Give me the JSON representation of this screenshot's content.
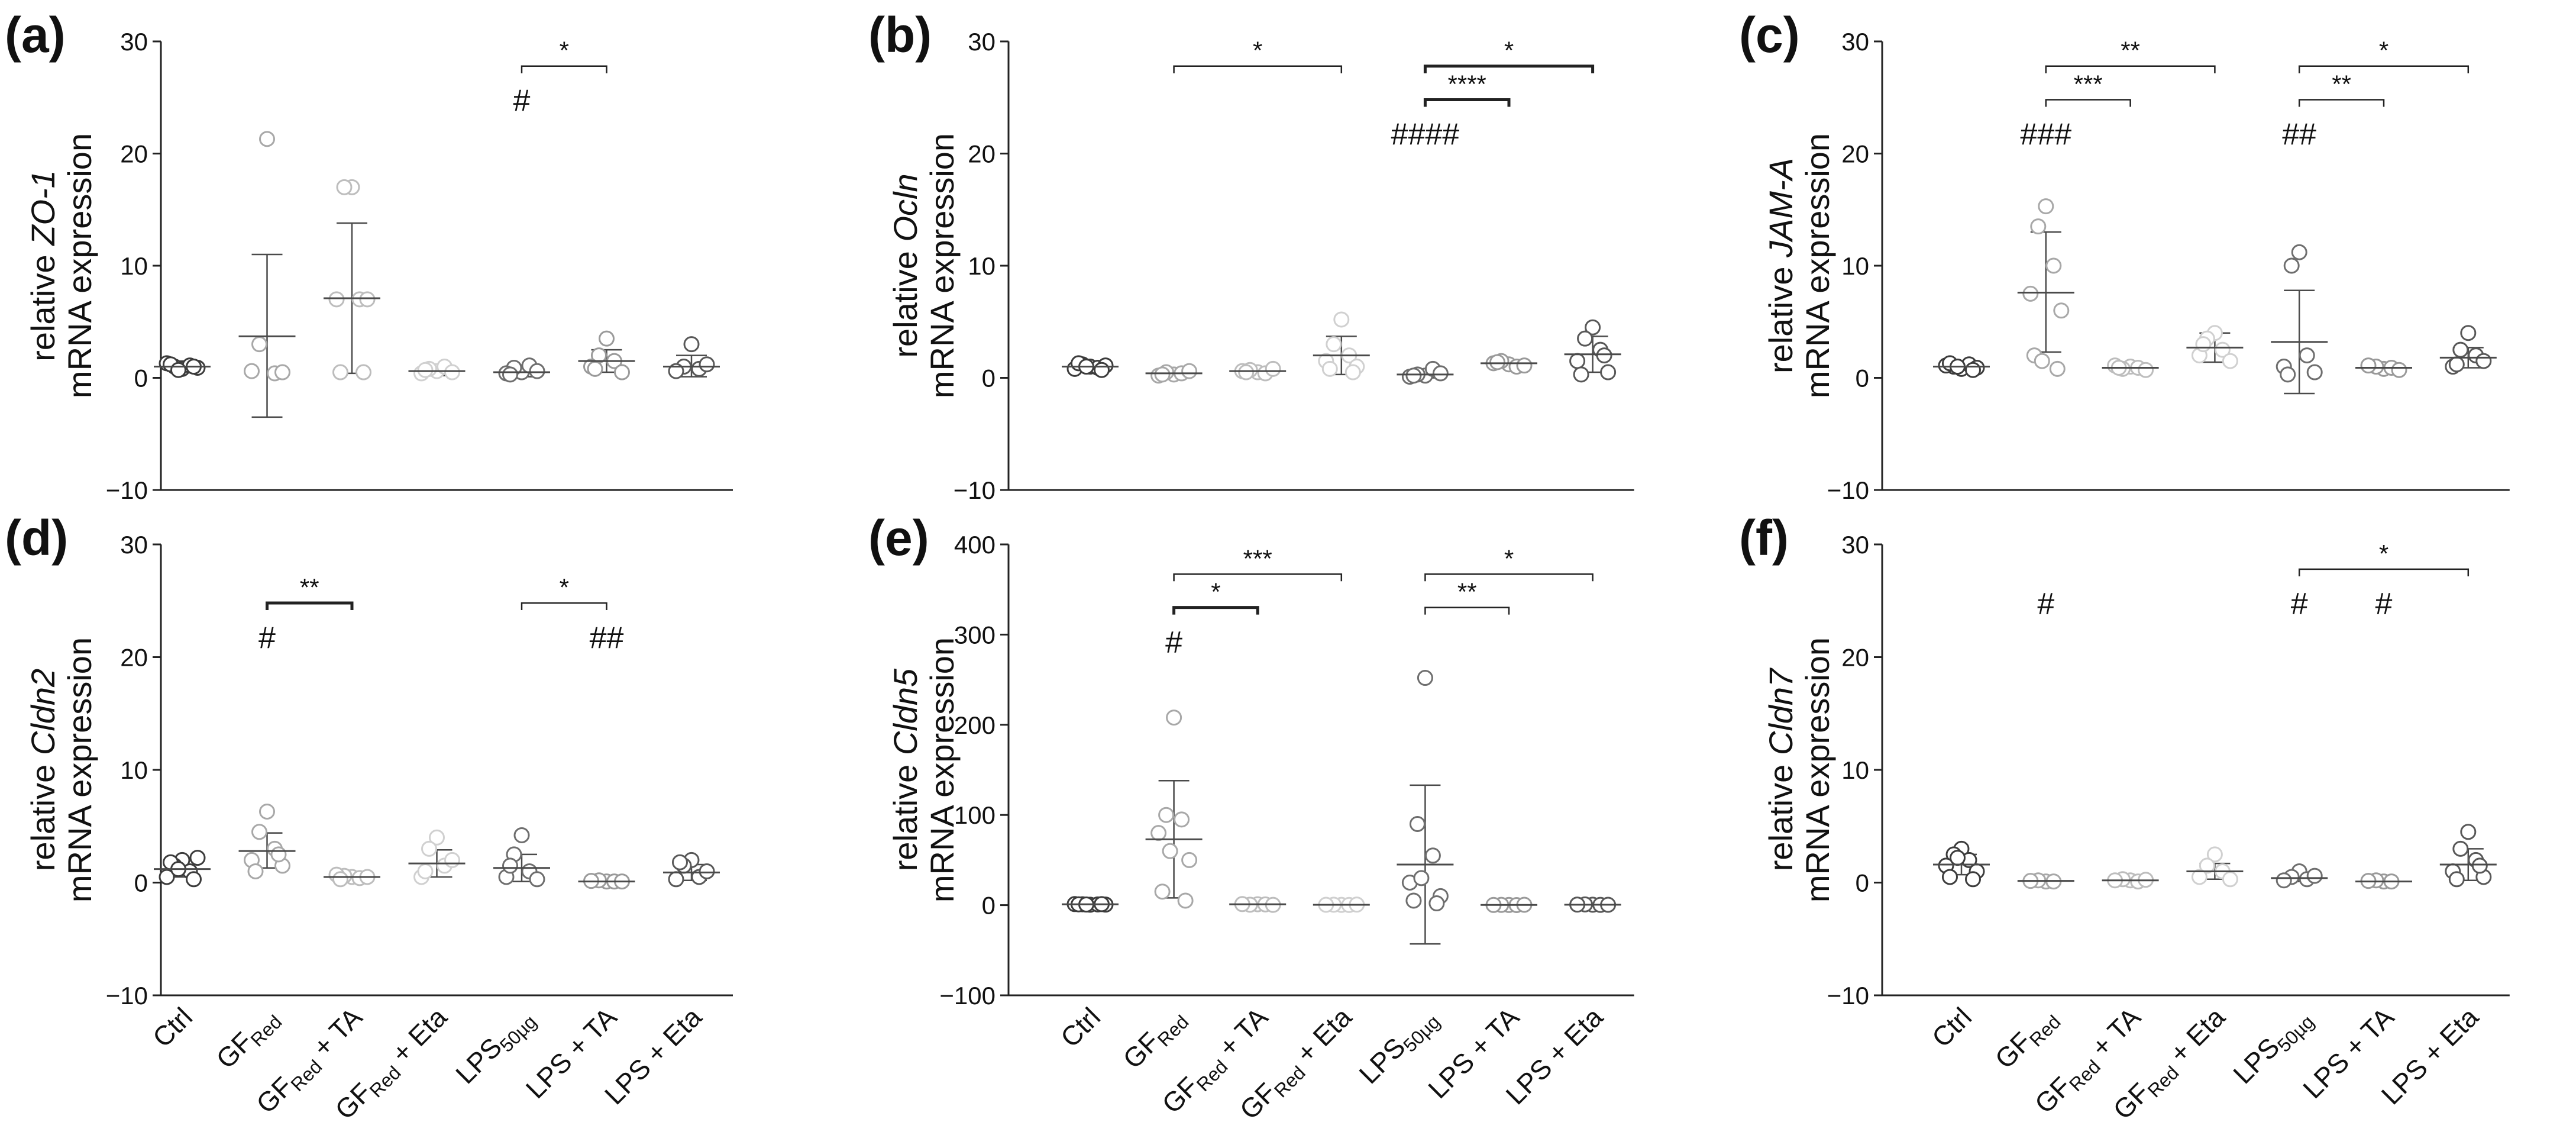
{
  "chart_data": [
    {
      "type": "scatter",
      "panel": "(a)",
      "ylabel": {
        "prefix": "relative ",
        "gene": "ZO-1",
        "line2": "mRNA expression"
      },
      "ylim": [
        -10,
        30
      ],
      "yticks": [
        -10,
        0,
        10,
        20,
        30
      ],
      "categories": [
        "Ctrl",
        "GF_Red",
        "GF_Red + TA",
        "GF_Red + Eta",
        "LPS_50µg",
        "LPS + TA",
        "LPS + Eta"
      ],
      "points": [
        [
          0.8,
          1.0,
          1.1,
          1.3,
          0.9,
          1.2,
          1.0,
          0.7
        ],
        [
          21.3,
          3.0,
          0.4,
          0.6,
          0.5
        ],
        [
          17.0,
          17.0,
          7.0,
          7.0,
          7.0,
          0.5,
          0.5
        ],
        [
          0.6,
          0.8,
          1.0,
          0.4,
          0.5,
          0.7
        ],
        [
          0.5,
          0.9,
          1.1,
          0.4,
          0.6,
          0.3
        ],
        [
          3.5,
          2.0,
          1.5,
          1.0,
          0.5,
          0.8
        ],
        [
          3.0,
          1.0,
          0.8,
          0.6,
          1.2
        ]
      ],
      "mean": [
        1.0,
        3.7,
        7.1,
        0.6,
        0.5,
        1.5,
        1.0
      ],
      "sd_upper": [
        1.5,
        11.0,
        13.8,
        1.0,
        1.0,
        2.5,
        2.0
      ],
      "sd_lower": [
        0.6,
        -3.5,
        0.4,
        0.2,
        0.1,
        0.5,
        0.1
      ],
      "brackets": [
        {
          "from": 4,
          "to": 5,
          "y": 27.8,
          "label": "*",
          "bold": false
        }
      ],
      "hashes": [
        {
          "cat": 4,
          "y": 23.8,
          "label": "#"
        }
      ]
    },
    {
      "type": "scatter",
      "panel": "(b)",
      "ylabel": {
        "prefix": "relative ",
        "gene": "Ocln",
        "line2": "mRNA expression"
      },
      "ylim": [
        -10,
        30
      ],
      "yticks": [
        -10,
        0,
        10,
        20,
        30
      ],
      "categories": [
        "Ctrl",
        "GF_Red",
        "GF_Red + TA",
        "GF_Red + Eta",
        "LPS_50µg",
        "LPS + TA",
        "LPS + Eta"
      ],
      "points": [
        [
          1.0,
          1.2,
          0.9,
          0.8,
          1.1,
          1.3,
          0.7,
          1.0
        ],
        [
          0.3,
          0.5,
          0.4,
          0.2,
          0.6,
          0.3
        ],
        [
          0.5,
          0.7,
          0.4,
          0.6,
          0.8,
          0.5
        ],
        [
          5.2,
          3.0,
          2.0,
          1.5,
          1.0,
          0.8,
          0.5
        ],
        [
          0.2,
          0.3,
          0.8,
          0.1,
          0.4,
          0.2
        ],
        [
          1.2,
          1.5,
          1.0,
          1.3,
          1.1,
          1.4
        ],
        [
          4.5,
          3.5,
          2.5,
          1.5,
          0.5,
          0.3,
          2.0
        ]
      ],
      "mean": [
        1.0,
        0.4,
        0.6,
        2.0,
        0.3,
        1.3,
        2.1
      ],
      "sd_upper": [
        1.3,
        0.6,
        0.8,
        3.7,
        0.6,
        1.6,
        3.7
      ],
      "sd_lower": [
        0.7,
        0.2,
        0.4,
        0.3,
        0.0,
        1.0,
        0.5
      ],
      "brackets": [
        {
          "from": 1,
          "to": 3,
          "y": 27.8,
          "label": "*",
          "bold": false
        },
        {
          "from": 4,
          "to": 6,
          "y": 27.8,
          "label": "*",
          "bold": true
        },
        {
          "from": 4,
          "to": 5,
          "y": 24.8,
          "label": "****",
          "bold": true
        }
      ],
      "hashes": [
        {
          "cat": 4,
          "y": 20.8,
          "label": "####"
        }
      ]
    },
    {
      "type": "scatter",
      "panel": "(c)",
      "ylabel": {
        "prefix": "relative ",
        "gene": "JAM-A",
        "line2": "mRNA expression"
      },
      "ylim": [
        -10,
        30
      ],
      "yticks": [
        -10,
        0,
        10,
        20,
        30
      ],
      "categories": [
        "Ctrl",
        "GF_Red",
        "GF_Red + TA",
        "GF_Red + Eta",
        "LPS_50µg",
        "LPS + TA",
        "LPS + Eta"
      ],
      "points": [
        [
          0.8,
          1.0,
          1.2,
          1.1,
          0.9,
          1.3,
          0.7,
          1.0
        ],
        [
          15.3,
          13.5,
          10.0,
          7.5,
          6.0,
          2.0,
          0.8,
          1.5
        ],
        [
          1.0,
          0.8,
          0.9,
          1.1,
          0.7,
          0.9
        ],
        [
          4.0,
          3.5,
          2.5,
          2.0,
          1.5,
          3.0
        ],
        [
          11.2,
          10.0,
          2.0,
          1.0,
          0.5,
          0.3
        ],
        [
          0.8,
          1.0,
          0.9,
          1.1,
          0.7
        ],
        [
          4.0,
          2.5,
          2.0,
          1.0,
          1.5,
          1.2
        ]
      ],
      "mean": [
        1.0,
        7.6,
        0.9,
        2.7,
        3.2,
        0.9,
        1.8
      ],
      "sd_upper": [
        1.2,
        13.0,
        1.1,
        4.0,
        7.8,
        1.1,
        2.7
      ],
      "sd_lower": [
        0.8,
        2.3,
        0.7,
        1.4,
        -1.4,
        0.7,
        0.9
      ],
      "brackets": [
        {
          "from": 1,
          "to": 3,
          "y": 27.8,
          "label": "**",
          "bold": false
        },
        {
          "from": 1,
          "to": 2,
          "y": 24.8,
          "label": "***",
          "bold": false
        },
        {
          "from": 4,
          "to": 6,
          "y": 27.8,
          "label": "*",
          "bold": false
        },
        {
          "from": 4,
          "to": 5,
          "y": 24.8,
          "label": "**",
          "bold": false
        }
      ],
      "hashes": [
        {
          "cat": 1,
          "y": 20.8,
          "label": "###"
        },
        {
          "cat": 4,
          "y": 20.8,
          "label": "##"
        }
      ]
    },
    {
      "type": "scatter",
      "panel": "(d)",
      "ylabel": {
        "prefix": "relative ",
        "gene": "Cldn2",
        "line2": "mRNA expression"
      },
      "ylim": [
        -10,
        30
      ],
      "yticks": [
        -10,
        0,
        10,
        20,
        30
      ],
      "categories": [
        "Ctrl",
        "GF_Red",
        "GF_Red + TA",
        "GF_Red + Eta",
        "LPS_50µg",
        "LPS + TA",
        "LPS + Eta"
      ],
      "points": [
        [
          2.0,
          1.5,
          1.0,
          0.5,
          2.2,
          1.8,
          0.3,
          1.2
        ],
        [
          6.3,
          4.5,
          3.0,
          2.0,
          1.5,
          1.0,
          2.5
        ],
        [
          0.5,
          0.6,
          0.4,
          0.7,
          0.5,
          0.3
        ],
        [
          4.0,
          3.0,
          1.5,
          0.5,
          2.0,
          1.0
        ],
        [
          4.2,
          2.5,
          1.0,
          0.5,
          0.3,
          1.5
        ],
        [
          0.1,
          0.2,
          0.1,
          0.15,
          0.1
        ],
        [
          2.0,
          1.5,
          0.5,
          0.3,
          1.0,
          1.8
        ]
      ],
      "mean": [
        1.2,
        2.8,
        0.5,
        1.7,
        1.3,
        0.1,
        0.9
      ],
      "sd_upper": [
        2.0,
        4.4,
        0.7,
        2.9,
        2.5,
        0.2,
        1.6
      ],
      "sd_lower": [
        0.5,
        1.3,
        0.3,
        0.5,
        0.1,
        0.0,
        0.2
      ],
      "brackets": [
        {
          "from": 1,
          "to": 2,
          "y": 24.8,
          "label": "**",
          "bold": true
        },
        {
          "from": 4,
          "to": 5,
          "y": 24.8,
          "label": "*",
          "bold": false
        }
      ],
      "hashes": [
        {
          "cat": 1,
          "y": 20.8,
          "label": "#"
        },
        {
          "cat": 5,
          "y": 20.8,
          "label": "##"
        }
      ]
    },
    {
      "type": "scatter",
      "panel": "(e)",
      "ylabel": {
        "prefix": "relative ",
        "gene": "Cldn5",
        "line2": "mRNA expression"
      },
      "ylim": [
        -100,
        400
      ],
      "yticks": [
        -100,
        0,
        100,
        200,
        300,
        400
      ],
      "categories": [
        "Ctrl",
        "GF_Red",
        "GF_Red + TA",
        "GF_Red + Eta",
        "LPS_50µg",
        "LPS + TA",
        "LPS + Eta"
      ],
      "points": [
        [
          0.5,
          1.0,
          0.8,
          1.2,
          0.6,
          0.9,
          1.1,
          0.7
        ],
        [
          208.0,
          100.0,
          95.0,
          80.0,
          50.0,
          15.0,
          5.0,
          60.0
        ],
        [
          1.0,
          0.5,
          0.8,
          1.2,
          0.3
        ],
        [
          0.3,
          0.5,
          0.2,
          0.4,
          0.6
        ],
        [
          252.0,
          90.0,
          55.0,
          25.0,
          10.0,
          5.0,
          2.0,
          30.0
        ],
        [
          0.2,
          0.3,
          0.1,
          0.2,
          0.4
        ],
        [
          0.5,
          0.8,
          0.3,
          0.6,
          0.4
        ]
      ],
      "mean": [
        1.0,
        73.0,
        1.0,
        0.4,
        45.0,
        0.2,
        0.5
      ],
      "sd_upper": [
        1.5,
        138.0,
        1.5,
        0.6,
        133.0,
        0.4,
        0.8
      ],
      "sd_lower": [
        0.5,
        8.0,
        0.5,
        0.2,
        -43.0,
        0.0,
        0.2
      ],
      "brackets": [
        {
          "from": 1,
          "to": 3,
          "y": 367,
          "label": "***",
          "bold": false
        },
        {
          "from": 1,
          "to": 2,
          "y": 330,
          "label": "*",
          "bold": true
        },
        {
          "from": 4,
          "to": 6,
          "y": 367,
          "label": "*",
          "bold": false
        },
        {
          "from": 4,
          "to": 5,
          "y": 330,
          "label": "**",
          "bold": false
        }
      ],
      "hashes": [
        {
          "cat": 1,
          "y": 280,
          "label": "#"
        }
      ]
    },
    {
      "type": "scatter",
      "panel": "(f)",
      "ylabel": {
        "prefix": "relative ",
        "gene": "Cldn7",
        "line2": "mRNA expression"
      },
      "ylim": [
        -10,
        30
      ],
      "yticks": [
        -10,
        0,
        10,
        20,
        30
      ],
      "categories": [
        "Ctrl",
        "GF_Red",
        "GF_Red + TA",
        "GF_Red + Eta",
        "LPS_50µg",
        "LPS + TA",
        "LPS + Eta"
      ],
      "points": [
        [
          3.0,
          2.5,
          2.0,
          1.5,
          1.0,
          0.5,
          0.3,
          2.2
        ],
        [
          0.1,
          0.2,
          0.1,
          0.15
        ],
        [
          0.2,
          0.3,
          0.1,
          0.2,
          0.25
        ],
        [
          2.5,
          1.5,
          1.0,
          0.5,
          0.3
        ],
        [
          1.0,
          0.5,
          0.3,
          0.2,
          0.6
        ],
        [
          0.1,
          0.2,
          0.1,
          0.15
        ],
        [
          4.5,
          3.0,
          2.0,
          1.0,
          0.5,
          0.3,
          1.5
        ]
      ],
      "mean": [
        1.6,
        0.15,
        0.2,
        1.0,
        0.4,
        0.1,
        1.6
      ],
      "sd_upper": [
        2.5,
        0.2,
        0.3,
        1.7,
        0.7,
        0.2,
        3.0
      ],
      "sd_lower": [
        0.7,
        0.1,
        0.1,
        0.3,
        0.1,
        0.0,
        0.2
      ],
      "brackets": [
        {
          "from": 4,
          "to": 6,
          "y": 27.8,
          "label": "*",
          "bold": false
        }
      ],
      "hashes": [
        {
          "cat": 1,
          "y": 23.8,
          "label": "#"
        },
        {
          "cat": 4,
          "y": 23.8,
          "label": "#"
        },
        {
          "cat": 5,
          "y": 23.8,
          "label": "#"
        }
      ]
    }
  ],
  "category_labels": [
    {
      "main": "Ctrl",
      "sub": "",
      "suffix": ""
    },
    {
      "main": "GF",
      "sub": "Red",
      "suffix": ""
    },
    {
      "main": "GF",
      "sub": "Red",
      "suffix": " + TA"
    },
    {
      "main": "GF",
      "sub": "Red",
      "suffix": " + Eta"
    },
    {
      "main": "LPS",
      "sub": "50µg",
      "suffix": ""
    },
    {
      "main": "LPS + TA",
      "sub": "",
      "suffix": ""
    },
    {
      "main": "LPS + Eta",
      "sub": "",
      "suffix": ""
    }
  ],
  "group_colors": [
    "#3c3c3c",
    "#a8a8a8",
    "#bdbdbd",
    "#d0d0d0",
    "#6e6e6e",
    "#9a9a9a",
    "#585858"
  ],
  "line_color": "#4a4a4a"
}
